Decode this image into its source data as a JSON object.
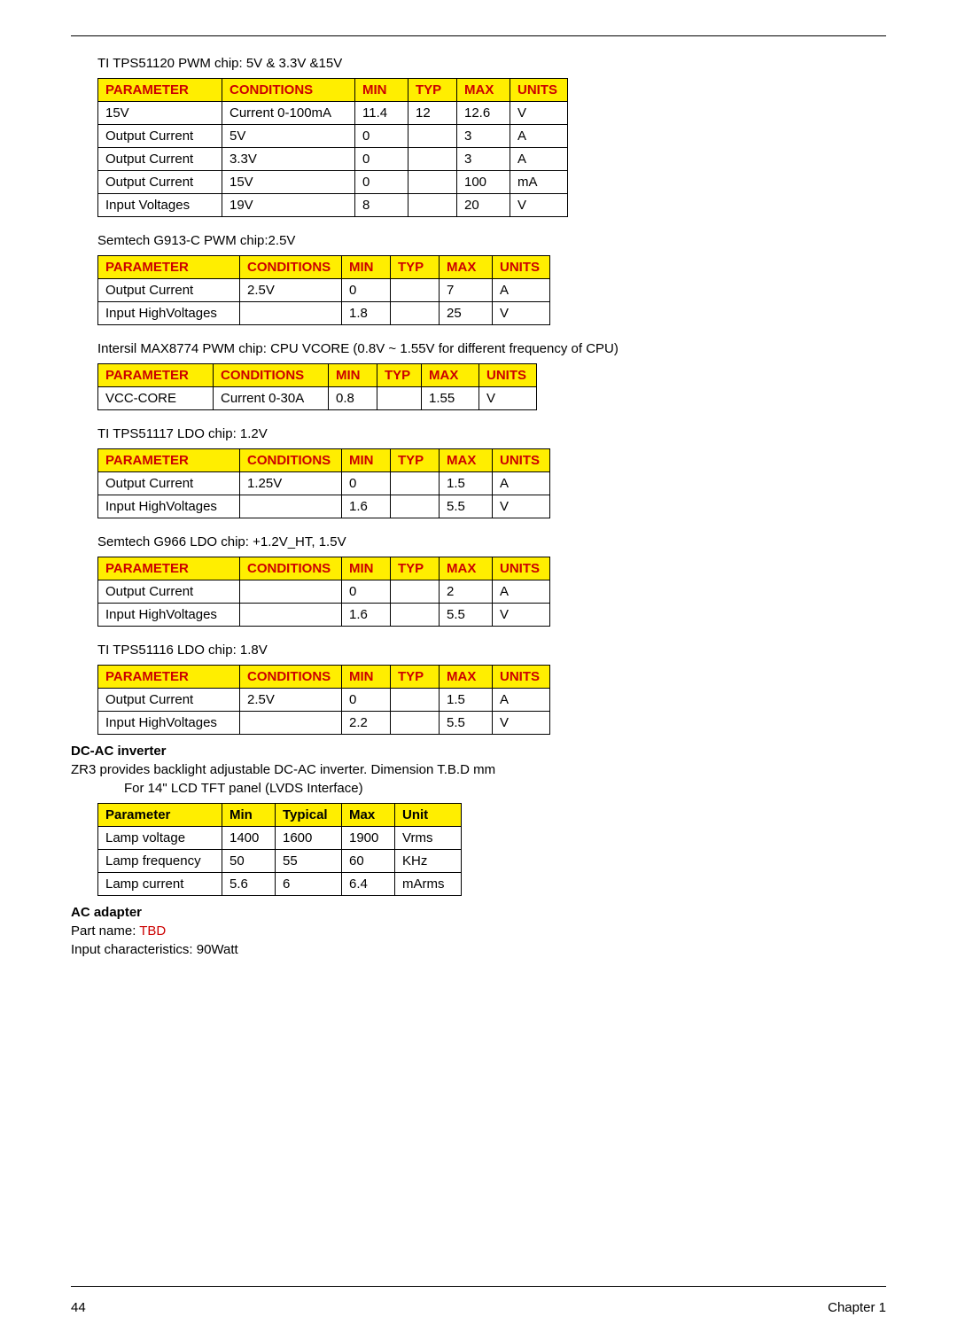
{
  "page": {
    "number": "44",
    "chapter": "Chapter 1"
  },
  "headers": {
    "parameter": "PARAMETER",
    "conditions": "CONDITIONS",
    "min": "MIN",
    "typ": "TYP",
    "max": "MAX",
    "units": "UNITS"
  },
  "t7headers": {
    "parameter": "Parameter",
    "min": "Min",
    "typical": "Typical",
    "max": "Max",
    "unit": "Unit"
  },
  "captions": {
    "t1": "TI TPS51120 PWM chip: 5V & 3.3V &15V",
    "t2": "Semtech G913-C PWM chip:2.5V",
    "t3": "Intersil MAX8774 PWM chip: CPU VCORE (0.8V ~ 1.55V for different frequency of CPU)",
    "t4": "TI TPS51117 LDO chip: 1.2V",
    "t5": "Semtech G966 LDO chip: +1.2V_HT, 1.5V",
    "t6": "TI TPS51116 LDO chip: 1.8V",
    "dcac_heading": "DC-AC inverter",
    "dcac_line1": "ZR3 provides backlight adjustable DC-AC inverter. Dimension T.B.D mm",
    "dcac_line2": "For 14\" LCD TFT panel (LVDS Interface)",
    "ac_heading": "AC adapter",
    "ac_part_label": "Part name: ",
    "ac_part_value": "TBD",
    "ac_input": "Input characteristics: 90Watt"
  },
  "t1": {
    "widths": {
      "parameter": 140,
      "conditions": 150,
      "min": 60,
      "typ": 55,
      "max": 60,
      "units": 65
    },
    "rows": [
      {
        "p": "15V",
        "c": "Current 0-100mA",
        "min": "11.4",
        "typ": "12",
        "max": "12.6",
        "u": "V"
      },
      {
        "p": "Output Current",
        "c": "5V",
        "min": "0",
        "typ": "",
        "max": "3",
        "u": "A"
      },
      {
        "p": "Output Current",
        "c": "3.3V",
        "min": "0",
        "typ": "",
        "max": "3",
        "u": "A"
      },
      {
        "p": "Output Current",
        "c": "15V",
        "min": "0",
        "typ": "",
        "max": "100",
        "u": "mA"
      },
      {
        "p": "Input Voltages",
        "c": "19V",
        "min": "8",
        "typ": "",
        "max": "20",
        "u": "V"
      }
    ]
  },
  "t2": {
    "widths": {
      "parameter": 160,
      "conditions": 115,
      "min": 55,
      "typ": 55,
      "max": 60,
      "units": 65
    },
    "rows": [
      {
        "p": "Output Current",
        "c": "2.5V",
        "min": "0",
        "typ": "",
        "max": "7",
        "u": "A"
      },
      {
        "p": "Input HighVoltages",
        "c": "",
        "min": "1.8",
        "typ": "",
        "max": "25",
        "u": "V"
      }
    ]
  },
  "t3": {
    "widths": {
      "parameter": 130,
      "conditions": 130,
      "min": 55,
      "typ": 50,
      "max": 65,
      "units": 65
    },
    "rows": [
      {
        "p": "VCC-CORE",
        "c": "Current 0-30A",
        "min": "0.8",
        "typ": "",
        "max": "1.55",
        "u": "V"
      }
    ]
  },
  "t4": {
    "widths": {
      "parameter": 160,
      "conditions": 115,
      "min": 55,
      "typ": 55,
      "max": 60,
      "units": 65
    },
    "rows": [
      {
        "p": "Output Current",
        "c": "1.25V",
        "min": "0",
        "typ": "",
        "max": "1.5",
        "u": "A"
      },
      {
        "p": "Input HighVoltages",
        "c": "",
        "min": "1.6",
        "typ": "",
        "max": "5.5",
        "u": "V"
      }
    ]
  },
  "t5": {
    "widths": {
      "parameter": 160,
      "conditions": 115,
      "min": 55,
      "typ": 55,
      "max": 60,
      "units": 65
    },
    "rows": [
      {
        "p": "Output Current",
        "c": "",
        "min": "0",
        "typ": "",
        "max": "2",
        "u": "A"
      },
      {
        "p": "Input HighVoltages",
        "c": "",
        "min": "1.6",
        "typ": "",
        "max": "5.5",
        "u": "V"
      }
    ]
  },
  "t6": {
    "widths": {
      "parameter": 160,
      "conditions": 115,
      "min": 55,
      "typ": 55,
      "max": 60,
      "units": 65
    },
    "rows": [
      {
        "p": "Output Current",
        "c": "2.5V",
        "min": "0",
        "typ": "",
        "max": "1.5",
        "u": "A"
      },
      {
        "p": "Input HighVoltages",
        "c": "",
        "min": "2.2",
        "typ": "",
        "max": "5.5",
        "u": "V"
      }
    ]
  },
  "t7": {
    "widths": {
      "parameter": 140,
      "min": 60,
      "typical": 75,
      "max": 60,
      "unit": 75
    },
    "rows": [
      {
        "p": "Lamp voltage",
        "min": "1400",
        "typ": "1600",
        "max": "1900",
        "u": "Vrms"
      },
      {
        "p": "Lamp frequency",
        "min": "50",
        "typ": "55",
        "max": "60",
        "u": "KHz"
      },
      {
        "p": "Lamp current",
        "min": "5.6",
        "typ": "6",
        "max": "6.4",
        "u": "mArms"
      }
    ]
  },
  "style": {
    "header_bg": "#ffee00",
    "header_fg": "#cc0000",
    "border_color": "#000000",
    "font_size": 15
  }
}
